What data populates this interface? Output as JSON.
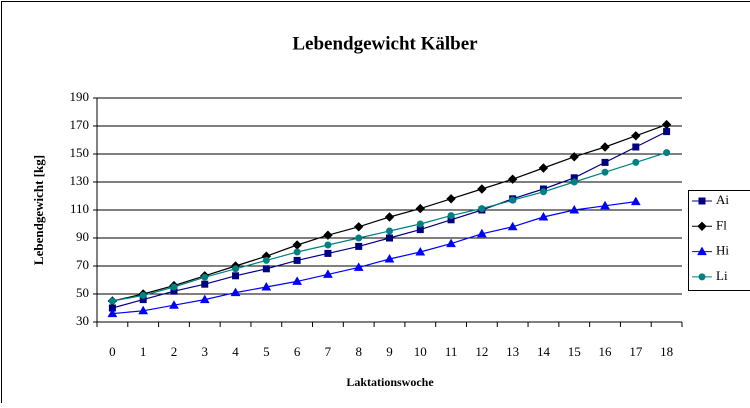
{
  "chart_data": {
    "type": "line",
    "title": "Lebendgewicht Kälber",
    "x_label": "Laktationswoche",
    "y_label": "Lebendgewicht [kg]",
    "categories": [
      "0",
      "1",
      "2",
      "3",
      "4",
      "5",
      "6",
      "7",
      "8",
      "9",
      "10",
      "11",
      "12",
      "13",
      "14",
      "15",
      "16",
      "17",
      "18"
    ],
    "ylim": [
      30,
      190
    ],
    "yticks": [
      30,
      50,
      70,
      90,
      110,
      130,
      150,
      170,
      190
    ],
    "grid": true,
    "legend": "right",
    "series": [
      {
        "name": "Ai",
        "color": "#000080",
        "marker": "square",
        "values": [
          40,
          46,
          52,
          57,
          63,
          68,
          74,
          79,
          84,
          90,
          96,
          103,
          110,
          118,
          125,
          133,
          144,
          155,
          166
        ]
      },
      {
        "name": "Fl",
        "color": "#000000",
        "marker": "diamond",
        "values": [
          45,
          50,
          56,
          63,
          70,
          77,
          85,
          92,
          98,
          105,
          111,
          118,
          125,
          132,
          140,
          148,
          155,
          163,
          171
        ]
      },
      {
        "name": "Hi",
        "color": "#0000ff",
        "marker": "triangle",
        "values": [
          36,
          38,
          42,
          46,
          51,
          55,
          59,
          64,
          69,
          75,
          80,
          86,
          93,
          98,
          105,
          110,
          113,
          116,
          null
        ]
      },
      {
        "name": "Li",
        "color": "#008080",
        "marker": "circle",
        "values": [
          45,
          49,
          55,
          62,
          68,
          74,
          80,
          85,
          90,
          95,
          100,
          106,
          111,
          117,
          123,
          130,
          137,
          144,
          151
        ]
      }
    ]
  }
}
